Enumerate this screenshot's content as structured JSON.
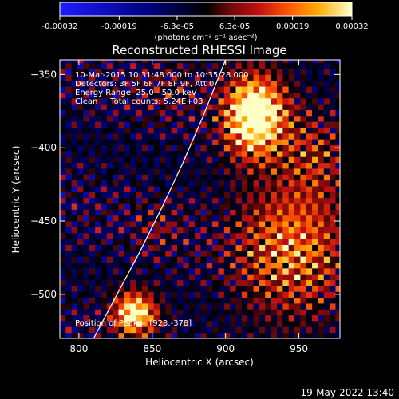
{
  "chart_data": {
    "type": "heatmap",
    "title": "Reconstructed RHESSI Image",
    "xlabel": "Heliocentric X (arcsec)",
    "ylabel": "Heliocentric Y (arcsec)",
    "xlim": [
      787,
      978
    ],
    "ylim": [
      -530,
      -340
    ],
    "xticks": [
      800,
      850,
      900,
      950
    ],
    "yticks": [
      -350,
      -400,
      -450,
      -500
    ],
    "grid": false,
    "colorbar": {
      "position": "top",
      "min": -0.00032,
      "max": 0.00032,
      "tick_values": [
        -0.00032,
        -0.00019,
        -6.3e-05,
        6.3e-05,
        0.00019,
        0.00032
      ],
      "tick_labels": [
        "-0.00032",
        "-0.00019",
        "-6.3e-05",
        "6.3e-05",
        "0.00019",
        "0.00032"
      ],
      "units": "(photons cm⁻² s⁻¹ asec⁻²)"
    },
    "colormap_stops": [
      {
        "v": 0.0,
        "c": "#1d1dff"
      },
      {
        "v": 0.3,
        "c": "#000080"
      },
      {
        "v": 0.5,
        "c": "#000000"
      },
      {
        "v": 0.58,
        "c": "#6a0a0a"
      },
      {
        "v": 0.68,
        "c": "#c01010"
      },
      {
        "v": 0.78,
        "c": "#ff5500"
      },
      {
        "v": 0.88,
        "c": "#ffaa00"
      },
      {
        "v": 1.0,
        "c": "#ffffc8"
      }
    ],
    "field": {
      "background_value": -4.5e-05,
      "sources": [
        {
          "x": 920,
          "y": -378,
          "sx": 14,
          "sy": 18,
          "amp": 0.00052
        },
        {
          "x": 945,
          "y": -468,
          "sx": 26,
          "sy": 30,
          "amp": 0.00024
        },
        {
          "x": 838,
          "y": -513,
          "sx": 10,
          "sy": 10,
          "amp": 0.0004
        },
        {
          "x": 960,
          "y": -405,
          "sx": 16,
          "sy": 20,
          "amp": 0.00012
        },
        {
          "x": 862,
          "y": -360,
          "sx": 14,
          "sy": 14,
          "amp": 6e-05
        },
        {
          "x": 855,
          "y": -455,
          "sx": 12,
          "sy": 12,
          "amp": 7e-05
        }
      ]
    },
    "limb": [
      [
        810,
        -530
      ],
      [
        826,
        -500
      ],
      [
        842,
        -470
      ],
      [
        857,
        -440
      ],
      [
        871,
        -410
      ],
      [
        884,
        -380
      ],
      [
        894,
        -355
      ],
      [
        900,
        -340
      ]
    ],
    "annotations": [
      "10-Mar-2015 10:31:48.000 to 10:35:28.000",
      "Detectors: 3F 5F 6F 7F 8F 9F, Att 0",
      "Energy Range: 25.0 - 50.0 keV",
      "Clean     Total counts: 5.24E+03"
    ],
    "peak_label": "Position of Peak = [923,-378]"
  },
  "footer": {
    "timestamp": "19-May-2022 13:40"
  }
}
